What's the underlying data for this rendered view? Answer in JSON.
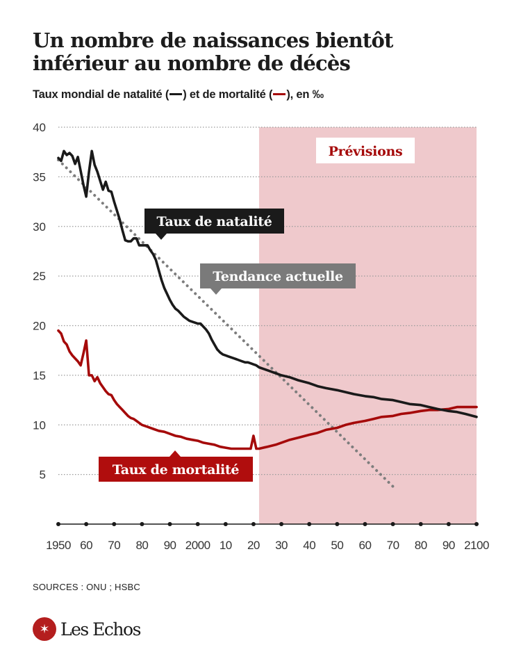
{
  "header": {
    "title_line1": "Un nombre de naissances bientôt",
    "title_line2": "inférieur au nombre de décès",
    "subtitle_part1": "Taux mondial de natalité (",
    "subtitle_part2": ") et de mortalité (",
    "subtitle_part3": "), en ‰"
  },
  "footer": {
    "source": "SOURCES : ONU ; HSBC",
    "logo_text": "Les Echos",
    "logo_icon": "les-echos-emblem-icon"
  },
  "colors": {
    "birth": "#1a1a1a",
    "death": "#a50a0a",
    "trend": "#7d7d7d",
    "forecast_band": "#efc9cc",
    "grid": "#9a9a9a",
    "birth_label_bg": "#1a1a1a",
    "trend_label_bg": "#7a7a7a",
    "death_label_bg": "#b00d0d",
    "forecast_label_text": "#a50a0a"
  },
  "chart_data": {
    "type": "line",
    "title": "Un nombre de naissances bientôt inférieur au nombre de décès",
    "subtitle": "Taux mondial de natalité et de mortalité, en ‰",
    "xlabel": "",
    "ylabel": "",
    "xlim": [
      1950,
      2100
    ],
    "ylim": [
      0,
      40
    ],
    "grid": true,
    "yticks": [
      5,
      10,
      15,
      20,
      25,
      30,
      35,
      40
    ],
    "xticks": [
      1950,
      1960,
      1970,
      1980,
      1990,
      2000,
      2010,
      2020,
      2030,
      2040,
      2050,
      2060,
      2070,
      2080,
      2090,
      2100
    ],
    "xtick_labels": [
      "1950",
      "60",
      "70",
      "80",
      "90",
      "2000",
      "10",
      "20",
      "30",
      "40",
      "50",
      "60",
      "70",
      "80",
      "90",
      "2100"
    ],
    "forecast_region": {
      "label": "Prévisions",
      "from": 2022,
      "to": 2100
    },
    "series": [
      {
        "name": "Taux de natalité",
        "style": "solid",
        "x": [
          1950,
          1951,
          1952,
          1953,
          1954,
          1955,
          1956,
          1957,
          1958,
          1959,
          1960,
          1961,
          1962,
          1963,
          1964,
          1965,
          1966,
          1967,
          1968,
          1969,
          1970,
          1971,
          1972,
          1973,
          1974,
          1975,
          1976,
          1977,
          1978,
          1979,
          1980,
          1981,
          1982,
          1983,
          1984,
          1985,
          1986,
          1987,
          1988,
          1989,
          1990,
          1991,
          1992,
          1993,
          1994,
          1995,
          1996,
          1997,
          1998,
          1999,
          2000,
          2001,
          2002,
          2003,
          2004,
          2005,
          2006,
          2007,
          2008,
          2009,
          2010,
          2011,
          2012,
          2013,
          2014,
          2015,
          2016,
          2017,
          2018,
          2019,
          2020,
          2021,
          2022,
          2025,
          2028,
          2030,
          2033,
          2036,
          2040,
          2043,
          2046,
          2050,
          2053,
          2056,
          2060,
          2063,
          2066,
          2070,
          2073,
          2076,
          2080,
          2083,
          2086,
          2090,
          2093,
          2096,
          2100
        ],
        "values": [
          36.9,
          36.6,
          37.6,
          37.2,
          37.4,
          37.1,
          36.3,
          37.0,
          35.6,
          34.2,
          33.0,
          35.5,
          37.6,
          36.2,
          35.5,
          34.6,
          33.7,
          34.5,
          33.6,
          33.5,
          32.5,
          31.6,
          30.7,
          29.6,
          28.6,
          28.5,
          28.5,
          28.8,
          28.8,
          28.1,
          28.1,
          28.1,
          28.1,
          27.6,
          27.2,
          26.6,
          25.6,
          24.6,
          23.8,
          23.2,
          22.6,
          22.1,
          21.7,
          21.5,
          21.2,
          20.9,
          20.7,
          20.5,
          20.4,
          20.3,
          20.2,
          20.2,
          19.9,
          19.6,
          19.2,
          18.6,
          18.1,
          17.6,
          17.3,
          17.1,
          17.0,
          16.9,
          16.8,
          16.7,
          16.6,
          16.5,
          16.4,
          16.3,
          16.3,
          16.2,
          16.1,
          16.0,
          15.8,
          15.5,
          15.2,
          15.0,
          14.8,
          14.5,
          14.2,
          13.9,
          13.7,
          13.5,
          13.3,
          13.1,
          12.9,
          12.8,
          12.6,
          12.5,
          12.3,
          12.1,
          12.0,
          11.8,
          11.6,
          11.4,
          11.3,
          11.1,
          10.8
        ]
      },
      {
        "name": "Taux de mortalité",
        "style": "solid",
        "x": [
          1950,
          1951,
          1952,
          1953,
          1954,
          1955,
          1956,
          1957,
          1958,
          1959,
          1960,
          1961,
          1962,
          1963,
          1964,
          1965,
          1966,
          1967,
          1968,
          1969,
          1970,
          1971,
          1972,
          1973,
          1974,
          1975,
          1976,
          1977,
          1978,
          1979,
          1980,
          1982,
          1984,
          1986,
          1988,
          1990,
          1992,
          1994,
          1996,
          1998,
          2000,
          2002,
          2004,
          2006,
          2008,
          2010,
          2012,
          2014,
          2016,
          2018,
          2019,
          2020,
          2021,
          2022,
          2025,
          2028,
          2030,
          2033,
          2036,
          2040,
          2043,
          2046,
          2050,
          2053,
          2056,
          2060,
          2063,
          2066,
          2070,
          2073,
          2076,
          2080,
          2083,
          2086,
          2090,
          2093,
          2096,
          2100
        ],
        "values": [
          19.5,
          19.2,
          18.4,
          18.1,
          17.4,
          17.0,
          16.7,
          16.4,
          16.0,
          17.2,
          18.5,
          15.0,
          15.0,
          14.4,
          14.8,
          14.2,
          13.8,
          13.4,
          13.1,
          13.0,
          12.5,
          12.1,
          11.8,
          11.5,
          11.2,
          10.9,
          10.7,
          10.6,
          10.4,
          10.2,
          10.0,
          9.8,
          9.6,
          9.4,
          9.3,
          9.1,
          8.9,
          8.8,
          8.6,
          8.5,
          8.4,
          8.2,
          8.1,
          8.0,
          7.8,
          7.7,
          7.6,
          7.6,
          7.6,
          7.6,
          7.6,
          8.9,
          7.6,
          7.6,
          7.8,
          8.0,
          8.2,
          8.5,
          8.7,
          9.0,
          9.2,
          9.5,
          9.7,
          10.0,
          10.2,
          10.4,
          10.6,
          10.8,
          10.9,
          11.1,
          11.2,
          11.4,
          11.5,
          11.5,
          11.6,
          11.8,
          11.8,
          11.8
        ]
      },
      {
        "name": "Tendance actuelle",
        "style": "dotted",
        "x": [
          1950,
          2070
        ],
        "values": [
          36.7,
          3.8
        ]
      }
    ],
    "annotations": [
      {
        "text": "Taux de natalité",
        "series": "Taux de natalité",
        "points_to": {
          "x": 1986,
          "y": 28.1
        }
      },
      {
        "text": "Tendance actuelle",
        "series": "Tendance actuelle",
        "points_to": {
          "x": 2006,
          "y": 23
        }
      },
      {
        "text": "Taux de mortalité",
        "series": "Taux de mortalité",
        "points_to": {
          "x": 1992,
          "y": 7.6
        }
      },
      {
        "text": "Prévisions",
        "series": null
      }
    ]
  }
}
